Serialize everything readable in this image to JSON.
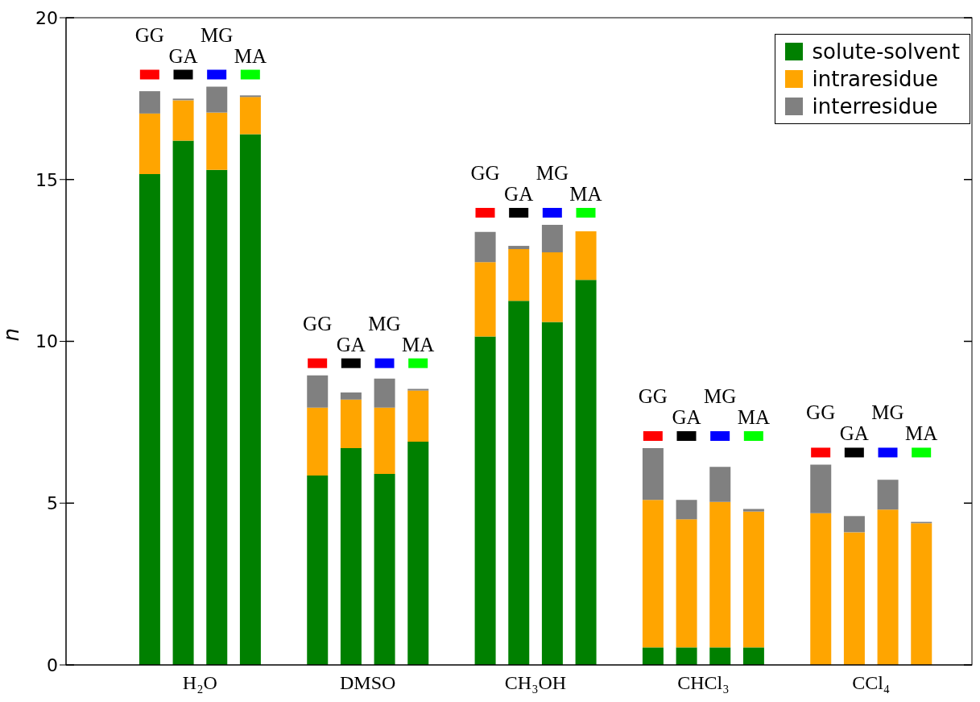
{
  "chart_data": {
    "type": "bar",
    "stacked": true,
    "ylabel": "n",
    "categories": [
      "GG",
      "GA",
      "MG",
      "MA",
      null,
      "GG",
      "GA",
      "MG",
      "MA",
      null,
      "GG",
      "GA",
      "MG",
      "MA",
      null,
      "GG",
      "GA",
      "MG",
      "MA",
      null,
      "GG",
      "GA",
      "MG",
      "MA"
    ],
    "series": [
      {
        "name": "solute-solvent",
        "color": "#008000",
        "values": [
          15.17,
          16.2,
          15.3,
          16.4,
          null,
          5.85,
          6.7,
          5.9,
          6.9,
          null,
          10.15,
          11.25,
          10.6,
          11.9,
          null,
          0.54,
          0.54,
          0.54,
          0.54,
          null,
          0,
          0,
          0,
          0
        ]
      },
      {
        "name": "intraresidue",
        "color": "#ffa500",
        "values": [
          1.87,
          1.25,
          1.77,
          1.15,
          null,
          2.1,
          1.5,
          2.05,
          1.58,
          null,
          2.3,
          1.6,
          2.15,
          1.5,
          null,
          4.56,
          3.96,
          4.5,
          4.2,
          null,
          4.69,
          4.1,
          4.8,
          4.38
        ]
      },
      {
        "name": "interresidue",
        "color": "#808080",
        "values": [
          0.69,
          0.05,
          0.8,
          0.05,
          null,
          1.0,
          0.22,
          0.9,
          0.05,
          null,
          0.93,
          0.1,
          0.85,
          0,
          null,
          1.6,
          0.6,
          1.08,
          0.08,
          null,
          1.5,
          0.5,
          0.92,
          0.04
        ]
      }
    ],
    "annotations": [
      "H₂O",
      "DMSO",
      "CH₃OH",
      "CHCl₃",
      "CCl₄"
    ],
    "ylim": [
      0,
      20
    ],
    "yticks": [
      0,
      5,
      10,
      15,
      20
    ],
    "legend": "top right"
  }
}
